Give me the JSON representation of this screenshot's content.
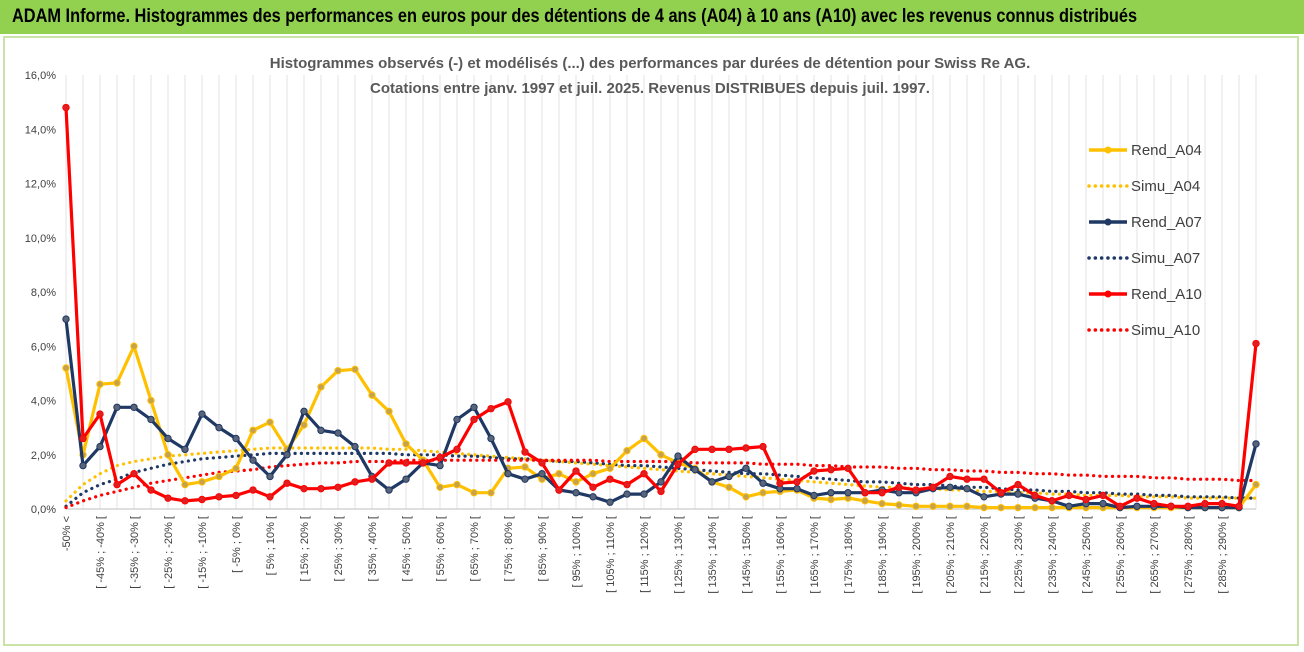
{
  "header": {
    "title": "ADAM Informe. Histogrammes des performances en euros pour des détentions de 4 ans (A04) à 10 ans (A10) avec les revenus connus distribués"
  },
  "chart_data": {
    "type": "line",
    "title": "Histogrammes observés (-) et modélisés (...) des performances par durées de détention pour Swiss Re AG.",
    "subtitle": "Cotations entre janv. 1997 et juil. 2025. Revenus DISTRIBUES depuis juil. 1997.",
    "xlabel": "",
    "ylabel": "",
    "ylim": [
      0,
      16
    ],
    "yticks": [
      "0,0%",
      "2,0%",
      "4,0%",
      "6,0%",
      "8,0%",
      "10,0%",
      "12,0%",
      "14,0%",
      "16,0%"
    ],
    "grid": "vertical",
    "legend": "right",
    "categories": [
      "-50% <",
      "[ -50% ; -45% [",
      "[ -45% ; -40% [",
      "[ -40% ; -35% [",
      "[ -35% ; -30% [",
      "[ -30% ; -25% [",
      "[ -25% ; -20% [",
      "[ -20% ; -15% [",
      "[ -15% ; -10% [",
      "[ -10% ; -5% [",
      "[ -5% ; 0% [",
      "[ 0% ; 5% [",
      "[ 5% ; 10% [",
      "[ 10% ; 15% [",
      "[ 15% ; 20% [",
      "[ 20% ; 25% [",
      "[ 25% ; 30% [",
      "[ 30% ; 35% [",
      "[ 35% ; 40% [",
      "[ 40% ; 45% [",
      "[ 45% ; 50% [",
      "[ 50% ; 55% [",
      "[ 55% ; 60% [",
      "[ 60% ; 65% [",
      "[ 65% ; 70% [",
      "[ 70% ; 75% [",
      "[ 75% ; 80% [",
      "[ 80% ; 85% [",
      "[ 85% ; 90% [",
      "[ 90% ; 95% [",
      "[ 95% ; 100% [",
      "[ 100% ; 105% [",
      "[ 105% ; 110% [",
      "[ 110% ; 115% [",
      "[ 115% ; 120% [",
      "[ 120% ; 125% [",
      "[ 125% ; 130% [",
      "[ 130% ; 135% [",
      "[ 135% ; 140% [",
      "[ 140% ; 145% [",
      "[ 145% ; 150% [",
      "[ 150% ; 155% [",
      "[ 155% ; 160% [",
      "[ 160% ; 165% [",
      "[ 165% ; 170% [",
      "[ 170% ; 175% [",
      "[ 175% ; 180% [",
      "[ 180% ; 185% [",
      "[ 185% ; 190% [",
      "[ 190% ; 195% [",
      "[ 195% ; 200% [",
      "[ 200% ; 205% [",
      "[ 205% ; 210% [",
      "[ 210% ; 215% [",
      "[ 215% ; 220% [",
      "[ 220% ; 225% [",
      "[ 225% ; 230% [",
      "[ 230% ; 235% [",
      "[ 235% ; 240% [",
      "[ 240% ; 245% [",
      "[ 245% ; 250% [",
      "[ 250% ; 255% [",
      "[ 255% ; 260% [",
      "[ 260% ; 265% [",
      "[ 265% ; 270% [",
      "[ 270% ; 275% [",
      "[ 275% ; 280% [",
      "[ 280% ; 285% [",
      "[ 285% ; 290% [",
      "[ 290% ; 295% [",
      "295% <"
    ],
    "visible_tick_labels": [
      "-50% <",
      "[ -45% ; -40% [",
      "[ -35% ; -30% [",
      "[ -25% ; -20% [",
      "[ -15% ; -10% [",
      "[ -5% ; 0% [",
      "[ 5% ; 10% [",
      "[ 15% ; 20% [",
      "[ 25% ; 30% [",
      "[ 35% ; 40% [",
      "[ 45% ; 50% [",
      "[ 55% ; 60% [",
      "[ 65% ; 70% [",
      "[ 75% ; 80% [",
      "[ 85% ; 90% [",
      "[ 95% ; 100% [",
      "[ 105% ; 110% [",
      "[ 115% ; 120% [",
      "[ 125% ; 130% [",
      "[ 135% ; 140% [",
      "[ 145% ; 150% [",
      "[ 155% ; 160% [",
      "[ 165% ; 170% [",
      "[ 175% ; 180% [",
      "[ 185% ; 190% [",
      "[ 195% ; 200% [",
      "[ 205% ; 210% [",
      "[ 215% ; 220% [",
      "[ 225% ; 230% [",
      "[ 235% ; 240% [",
      "[ 245% ; 250% [",
      "[ 255% ; 260% [",
      "[ 265% ; 270% [",
      "[ 275% ; 280% [",
      "[ 285% ; 290% ["
    ],
    "series": [
      {
        "name": "Rend_A04",
        "color": "#ffc000",
        "style": "solid",
        "markers": true,
        "values": [
          5.2,
          2.0,
          4.6,
          4.65,
          6.0,
          4.0,
          2.0,
          0.9,
          1.0,
          1.2,
          1.5,
          2.9,
          3.2,
          2.2,
          3.1,
          4.5,
          5.1,
          5.15,
          4.2,
          3.6,
          2.4,
          1.8,
          0.8,
          0.9,
          0.6,
          0.6,
          1.5,
          1.55,
          1.1,
          1.3,
          1.0,
          1.3,
          1.5,
          2.15,
          2.6,
          2.0,
          1.7,
          1.5,
          1.0,
          0.8,
          0.45,
          0.6,
          0.65,
          0.7,
          0.4,
          0.35,
          0.4,
          0.3,
          0.2,
          0.15,
          0.1,
          0.1,
          0.1,
          0.1,
          0.05,
          0.05,
          0.05,
          0.05,
          0.05,
          0.05,
          0.05,
          0.05,
          0.05,
          0.05,
          0.05,
          0.05,
          0.05,
          0.05,
          0.05,
          0.05,
          0.9
        ]
      },
      {
        "name": "Simu_A04",
        "color": "#ffc000",
        "style": "dotted",
        "markers": false,
        "values": [
          0.3,
          0.9,
          1.3,
          1.6,
          1.75,
          1.85,
          1.95,
          2.0,
          2.05,
          2.1,
          2.15,
          2.2,
          2.25,
          2.25,
          2.25,
          2.25,
          2.25,
          2.25,
          2.25,
          2.2,
          2.2,
          2.15,
          2.1,
          2.05,
          2.0,
          1.95,
          1.9,
          1.85,
          1.8,
          1.75,
          1.7,
          1.65,
          1.6,
          1.55,
          1.5,
          1.45,
          1.4,
          1.35,
          1.3,
          1.25,
          1.2,
          1.15,
          1.1,
          1.05,
          1.0,
          0.95,
          0.9,
          0.85,
          0.8,
          0.8,
          0.75,
          0.75,
          0.7,
          0.7,
          0.65,
          0.65,
          0.6,
          0.6,
          0.55,
          0.55,
          0.5,
          0.5,
          0.5,
          0.45,
          0.45,
          0.45,
          0.4,
          0.4,
          0.4,
          0.4,
          0.4
        ]
      },
      {
        "name": "Rend_A07",
        "color": "#1f3864",
        "style": "solid",
        "markers": true,
        "values": [
          7.0,
          1.6,
          2.3,
          3.75,
          3.75,
          3.3,
          2.6,
          2.2,
          3.5,
          3.0,
          2.6,
          1.8,
          1.2,
          2.0,
          3.6,
          2.9,
          2.8,
          2.3,
          1.2,
          0.7,
          1.1,
          1.7,
          1.6,
          3.3,
          3.75,
          2.6,
          1.3,
          1.1,
          1.3,
          0.7,
          0.6,
          0.45,
          0.25,
          0.55,
          0.55,
          1.0,
          1.95,
          1.45,
          1.0,
          1.2,
          1.5,
          0.95,
          0.75,
          0.75,
          0.5,
          0.6,
          0.6,
          0.6,
          0.7,
          0.6,
          0.6,
          0.75,
          0.8,
          0.75,
          0.45,
          0.55,
          0.55,
          0.4,
          0.3,
          0.1,
          0.2,
          0.2,
          0.05,
          0.1,
          0.1,
          0.1,
          0.05,
          0.05,
          0.05,
          0.05,
          2.4
        ]
      },
      {
        "name": "Simu_A07",
        "color": "#1f3864",
        "style": "dotted",
        "markers": false,
        "values": [
          0.1,
          0.6,
          0.9,
          1.1,
          1.35,
          1.5,
          1.65,
          1.75,
          1.85,
          1.9,
          1.95,
          2.0,
          2.05,
          2.05,
          2.05,
          2.05,
          2.05,
          2.05,
          2.05,
          2.05,
          2.0,
          2.0,
          2.0,
          1.95,
          1.95,
          1.9,
          1.85,
          1.85,
          1.8,
          1.75,
          1.75,
          1.7,
          1.65,
          1.6,
          1.6,
          1.55,
          1.5,
          1.45,
          1.4,
          1.35,
          1.3,
          1.3,
          1.25,
          1.2,
          1.15,
          1.1,
          1.05,
          1.0,
          1.0,
          0.95,
          0.9,
          0.9,
          0.85,
          0.8,
          0.8,
          0.75,
          0.7,
          0.7,
          0.65,
          0.65,
          0.6,
          0.6,
          0.55,
          0.55,
          0.5,
          0.5,
          0.45,
          0.45,
          0.45,
          0.4,
          0.4
        ]
      },
      {
        "name": "Rend_A10",
        "color": "#ff0000",
        "style": "solid",
        "markers": true,
        "values": [
          14.8,
          2.6,
          3.5,
          0.9,
          1.3,
          0.7,
          0.4,
          0.3,
          0.35,
          0.45,
          0.5,
          0.7,
          0.45,
          0.95,
          0.75,
          0.75,
          0.8,
          1.0,
          1.1,
          1.7,
          1.7,
          1.7,
          1.9,
          2.2,
          3.3,
          3.7,
          3.95,
          2.1,
          1.7,
          0.7,
          1.4,
          0.8,
          1.1,
          0.9,
          1.3,
          0.65,
          1.65,
          2.2,
          2.2,
          2.2,
          2.25,
          2.3,
          0.95,
          1.0,
          1.4,
          1.45,
          1.5,
          0.6,
          0.6,
          0.8,
          0.7,
          0.8,
          1.2,
          1.1,
          1.1,
          0.6,
          0.9,
          0.5,
          0.3,
          0.5,
          0.35,
          0.5,
          0.1,
          0.4,
          0.2,
          0.1,
          0.1,
          0.2,
          0.2,
          0.1,
          6.1
        ]
      },
      {
        "name": "Simu_A10",
        "color": "#ff0000",
        "style": "dotted",
        "markers": false,
        "values": [
          0.05,
          0.3,
          0.5,
          0.65,
          0.8,
          0.95,
          1.05,
          1.15,
          1.25,
          1.35,
          1.4,
          1.45,
          1.55,
          1.6,
          1.65,
          1.7,
          1.7,
          1.75,
          1.75,
          1.75,
          1.8,
          1.8,
          1.8,
          1.8,
          1.8,
          1.8,
          1.8,
          1.8,
          1.8,
          1.8,
          1.8,
          1.8,
          1.75,
          1.75,
          1.75,
          1.75,
          1.75,
          1.7,
          1.7,
          1.7,
          1.7,
          1.65,
          1.65,
          1.65,
          1.6,
          1.6,
          1.55,
          1.55,
          1.55,
          1.5,
          1.5,
          1.45,
          1.45,
          1.4,
          1.4,
          1.35,
          1.35,
          1.3,
          1.3,
          1.25,
          1.25,
          1.2,
          1.2,
          1.2,
          1.15,
          1.15,
          1.1,
          1.1,
          1.1,
          1.05,
          1.05
        ]
      }
    ]
  }
}
